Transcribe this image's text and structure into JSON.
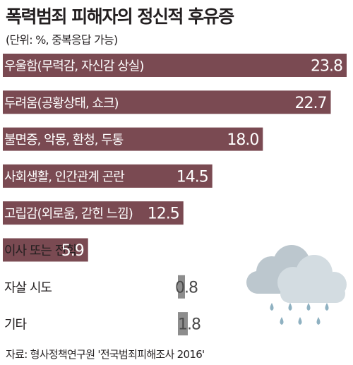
{
  "title": "폭력범죄 피해자의 정신적 후유증",
  "subtitle": "(단위: %, 중복응답 가능)",
  "footer": "자료: 형사정책연구원 '전국범죄피해조사 2016'",
  "colors": {
    "bar": "#7a4a52",
    "bar_small": "#8d8d8d",
    "label_on_bar": "#ffffff",
    "text": "#231f20",
    "cloud": "#c9d3d9",
    "rain": "#8fb1c1"
  },
  "chart_data": {
    "type": "bar",
    "orientation": "horizontal",
    "categories": [
      "우울함(무력감, 자신감 상실)",
      "두려움(공황상태, 쇼크)",
      "불면증, 악몽, 환청, 두통",
      "사회생활, 인간관계 곤란",
      "고립감(외로움, 갇힌 느낌)",
      "이사 또는 전학",
      "자살 시도",
      "기타"
    ],
    "values": [
      23.8,
      22.7,
      18.0,
      14.5,
      12.5,
      5.9,
      0.8,
      1.8
    ],
    "value_labels": [
      "23.8",
      "22.7",
      "18.0",
      "14.5",
      "12.5",
      "5.9",
      "0.8",
      "1.8"
    ],
    "xlim": [
      0,
      23.8
    ],
    "grid": false,
    "legend": "none"
  }
}
